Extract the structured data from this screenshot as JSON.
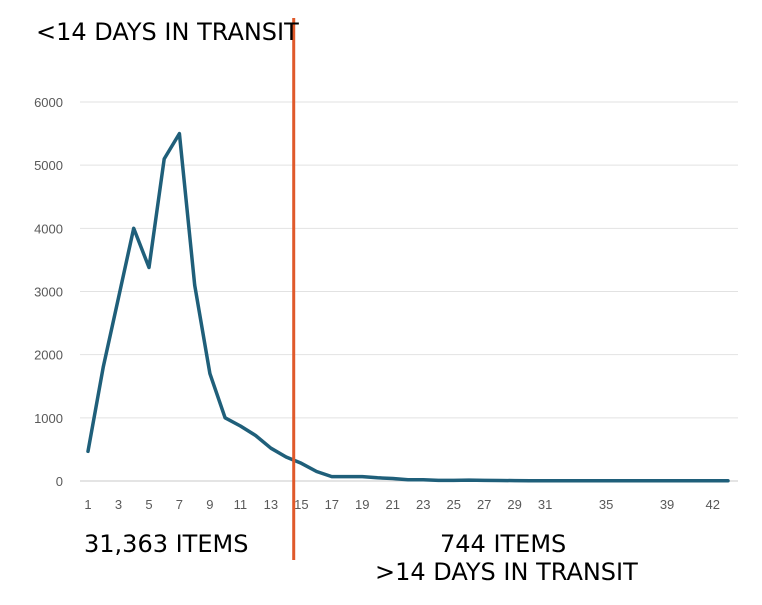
{
  "chart_data": {
    "type": "line",
    "x": [
      1,
      2,
      3,
      4,
      5,
      6,
      7,
      8,
      9,
      10,
      11,
      12,
      13,
      14,
      15,
      16,
      17,
      18,
      19,
      20,
      21,
      22,
      23,
      24,
      25,
      26,
      27,
      28,
      29,
      30,
      31,
      32,
      33,
      34,
      35,
      36,
      37,
      38,
      39,
      40,
      41,
      42,
      43
    ],
    "x_tick_labels": [
      "1",
      "3",
      "5",
      "7",
      "9",
      "11",
      "13",
      "15",
      "17",
      "19",
      "21",
      "23",
      "25",
      "27",
      "29",
      "31",
      "35",
      "39",
      "42"
    ],
    "series": [
      {
        "values": [
          470,
          1800,
          2900,
          4000,
          3380,
          5100,
          5500,
          3100,
          1700,
          1000,
          870,
          720,
          520,
          380,
          280,
          150,
          70,
          70,
          70,
          50,
          40,
          20,
          20,
          10,
          10,
          15,
          10,
          8,
          6,
          5,
          5,
          5,
          5,
          5,
          5,
          5,
          5,
          5,
          5,
          5,
          5,
          5,
          5
        ],
        "color": "#1f5f7a"
      }
    ],
    "ylim": [
      0,
      6000
    ],
    "y_ticks": [
      0,
      1000,
      2000,
      3000,
      4000,
      5000,
      6000
    ],
    "y_tick_labels": [
      "0",
      "1000",
      "2000",
      "3000",
      "4000",
      "5000",
      "6000"
    ],
    "grid": true,
    "divider": {
      "at_x": 14.5,
      "color": "#e0592a"
    },
    "annotations": {
      "top_left": "<14 DAYS IN TRANSIT",
      "bottom_left": "31,363 ITEMS",
      "bottom_right_count": "744 ITEMS",
      "bottom_right_label": ">14 DAYS IN TRANSIT"
    },
    "title": "",
    "xlabel": "",
    "ylabel": ""
  }
}
